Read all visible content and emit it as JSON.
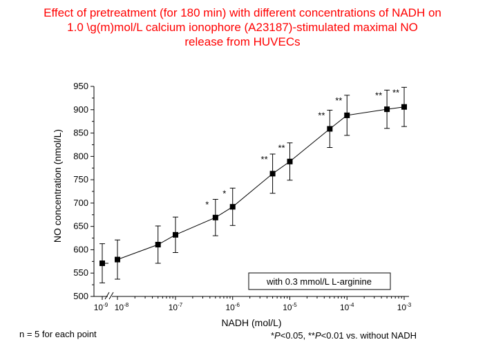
{
  "chart_data": {
    "type": "line",
    "title_lines": [
      "Effect of pretreatment (for 180 min) with different concentrations of NADH on",
      "1.0 \\g(m)mol/L calcium ionophore (A23187)-stimulated maximal NO",
      "release from HUVECs"
    ],
    "xlabel": "NADH (mol/L)",
    "ylabel": "NO concentration (nmol/L)",
    "x_scale": "log",
    "x_axis_break": true,
    "ylim": [
      500,
      950
    ],
    "y_ticks": [
      "500",
      "550",
      "600",
      "650",
      "700",
      "750",
      "800",
      "850",
      "900",
      "950"
    ],
    "x_tick_labels": [
      {
        "base": "10",
        "exp": "-9"
      },
      {
        "base": "10",
        "exp": "-8"
      },
      {
        "base": "10",
        "exp": "-7"
      },
      {
        "base": "10",
        "exp": "-6"
      },
      {
        "base": "10",
        "exp": "-5"
      },
      {
        "base": "10",
        "exp": "-4"
      },
      {
        "base": "10",
        "exp": "-3"
      }
    ],
    "series": [
      {
        "points": [
          {
            "x": 1e-09,
            "y": 571,
            "err": 42,
            "sig": ""
          },
          {
            "x": 1e-08,
            "y": 579,
            "err": 42,
            "sig": ""
          },
          {
            "x": 5e-08,
            "y": 611,
            "err": 40,
            "sig": ""
          },
          {
            "x": 1e-07,
            "y": 632,
            "err": 38,
            "sig": ""
          },
          {
            "x": 5e-07,
            "y": 669,
            "err": 39,
            "sig": "*"
          },
          {
            "x": 1e-06,
            "y": 692,
            "err": 40,
            "sig": "*"
          },
          {
            "x": 5e-06,
            "y": 763,
            "err": 42,
            "sig": "**"
          },
          {
            "x": 1e-05,
            "y": 789,
            "err": 40,
            "sig": "**"
          },
          {
            "x": 5e-05,
            "y": 859,
            "err": 40,
            "sig": "**"
          },
          {
            "x": 0.0001,
            "y": 888,
            "err": 43,
            "sig": "**"
          },
          {
            "x": 0.0005,
            "y": 901,
            "err": 41,
            "sig": "**"
          },
          {
            "x": 0.001,
            "y": 906,
            "err": 42,
            "sig": "**"
          }
        ]
      }
    ],
    "legend_box_text": "with 0.3 mmol/L L-arginine",
    "footnote_left": "n = 5 for each point",
    "footnote_right": {
      "p1_prefix": "*",
      "p1_italic": "P",
      "p1_rest": "<0.05, **",
      "p2_italic": "P",
      "p2_rest": "<0.01 vs. without NADH"
    }
  }
}
